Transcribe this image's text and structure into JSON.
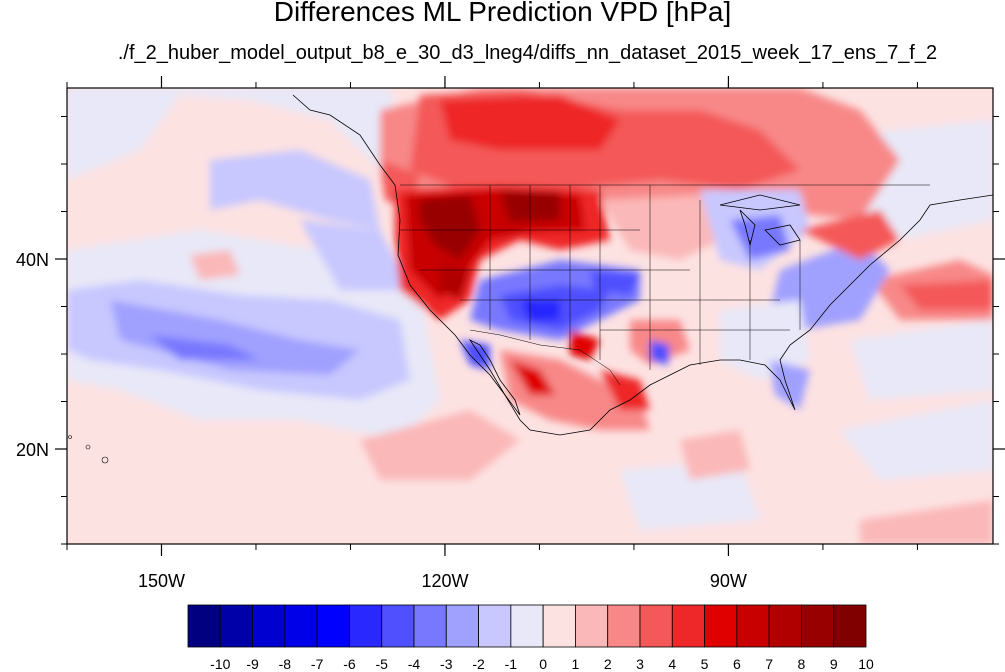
{
  "title": "Differences ML Prediction VPD [hPa]",
  "subtitle": "./f_2_huber_model_output_b8_e_30_d3_lneg4/diffs_nn_dataset_2015_week_17_ens_7_f_2",
  "map": {
    "lon_range": [
      -160,
      -62
    ],
    "lat_range": [
      10,
      58
    ],
    "lon_ticks": [
      {
        "value": -150,
        "label": "150W"
      },
      {
        "value": -120,
        "label": "120W"
      },
      {
        "value": -90,
        "label": "90W"
      }
    ],
    "lat_ticks": [
      {
        "value": 40,
        "label": "40N"
      },
      {
        "value": 20,
        "label": "20N"
      }
    ]
  },
  "colorbar": {
    "labels": [
      "-10",
      "-9",
      "-8",
      "-7",
      "-6",
      "-5",
      "-4",
      "-3",
      "-2",
      "-1",
      "0",
      "1",
      "2",
      "3",
      "4",
      "5",
      "6",
      "7",
      "8",
      "9",
      "10"
    ],
    "colors": [
      "#000080",
      "#0000a8",
      "#0000d0",
      "#0000e8",
      "#0000ff",
      "#2828ff",
      "#5050ff",
      "#7878ff",
      "#a0a0ff",
      "#c8c8ff",
      "#e8e8f8",
      "#fde2e2",
      "#fbb8b8",
      "#f88888",
      "#f45858",
      "#ee2828",
      "#e00000",
      "#c80000",
      "#b00000",
      "#980000",
      "#800000"
    ]
  },
  "colors": {
    "neutral_blue": "#e8e8f8",
    "neutral_pink": "#fde2e2"
  }
}
